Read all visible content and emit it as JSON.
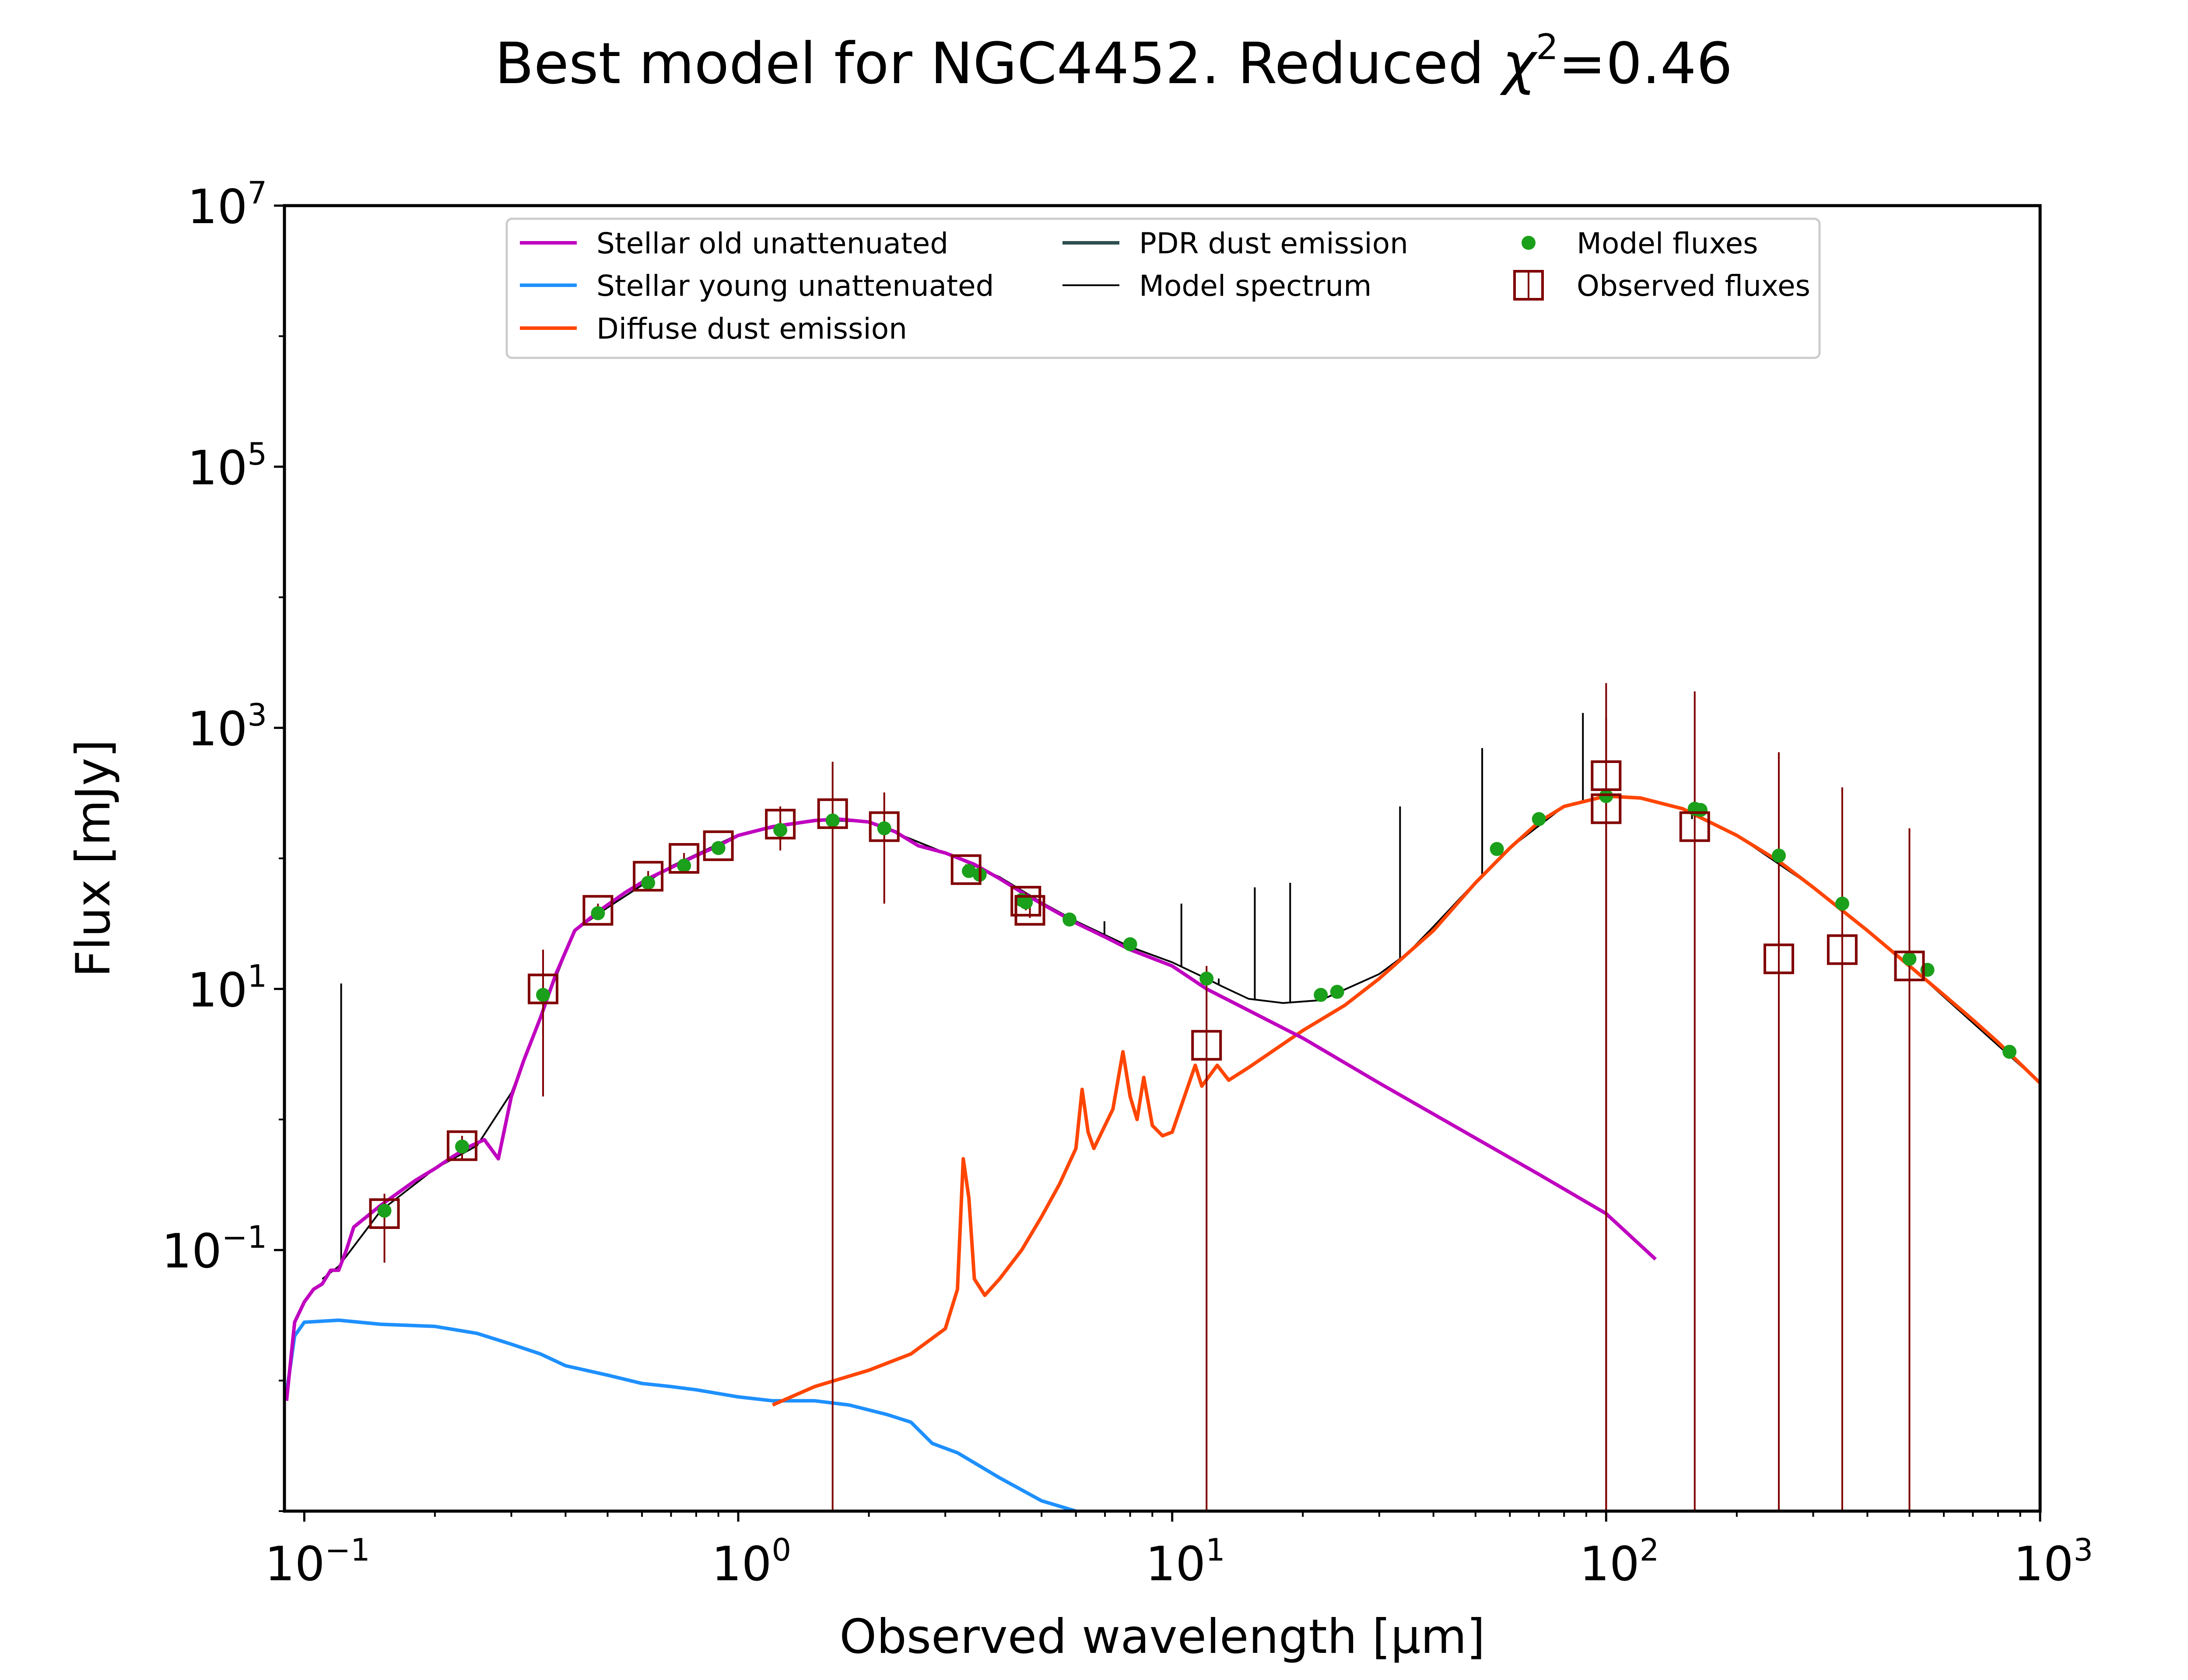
{
  "title": "Best model for NGC4452. Reduced χ²=0.46",
  "title_parts": {
    "main": "Best model for NGC4452. Reduced ",
    "chi": "χ",
    "sup": "2",
    "tail": "=0.46"
  },
  "xlabel": "Observed wavelength [μm]",
  "ylabel": "Flux [mJy]",
  "colors": {
    "stellar_old": "#bf00bf",
    "stellar_young": "#1e90ff",
    "diffuse_dust": "#ff4500",
    "pdr_dust": "#2f4f4f",
    "model_spectrum": "#000000",
    "model_fluxes": "#1aa01a",
    "observed_fluxes": "#800000"
  },
  "chart_data": {
    "type": "line",
    "xscale": "log",
    "yscale": "log",
    "xlim": [
      0.09,
      1000
    ],
    "ylim": [
      0.001,
      10000000
    ],
    "x_ticks": [
      {
        "base": "10",
        "exp": "−1",
        "value": 0.1
      },
      {
        "base": "10",
        "exp": "0",
        "value": 1
      },
      {
        "base": "10",
        "exp": "1",
        "value": 10
      },
      {
        "base": "10",
        "exp": "2",
        "value": 100
      },
      {
        "base": "10",
        "exp": "3",
        "value": 1000
      }
    ],
    "y_ticks": [
      {
        "base": "10",
        "exp": "−1",
        "value": 0.1
      },
      {
        "base": "10",
        "exp": "1",
        "value": 10
      },
      {
        "base": "10",
        "exp": "3",
        "value": 1000
      },
      {
        "base": "10",
        "exp": "5",
        "value": 100000
      },
      {
        "base": "10",
        "exp": "7",
        "value": 10000000
      }
    ],
    "legend": {
      "placement": "top-center",
      "entries": [
        {
          "label": "Stellar old unattenuated",
          "series": "stellar_old",
          "kind": "line"
        },
        {
          "label": "Stellar young unattenuated",
          "series": "stellar_young",
          "kind": "line"
        },
        {
          "label": "Diffuse dust emission",
          "series": "diffuse_dust",
          "kind": "line"
        },
        {
          "label": "PDR dust emission",
          "series": "pdr_dust",
          "kind": "line"
        },
        {
          "label": "Model spectrum",
          "series": "model_spectrum",
          "kind": "thinline"
        },
        {
          "label": "Model fluxes",
          "series": "model_fluxes",
          "kind": "dot"
        },
        {
          "label": "Observed fluxes",
          "series": "observed_fluxes",
          "kind": "square"
        }
      ]
    },
    "series": {
      "stellar_old": [
        [
          0.091,
          0.007
        ],
        [
          0.095,
          0.028
        ],
        [
          0.1,
          0.04
        ],
        [
          0.105,
          0.05
        ],
        [
          0.11,
          0.055
        ],
        [
          0.115,
          0.07
        ],
        [
          0.12,
          0.07
        ],
        [
          0.125,
          0.1
        ],
        [
          0.13,
          0.15
        ],
        [
          0.15,
          0.22
        ],
        [
          0.18,
          0.34
        ],
        [
          0.2,
          0.42
        ],
        [
          0.22,
          0.52
        ],
        [
          0.24,
          0.62
        ],
        [
          0.26,
          0.7
        ],
        [
          0.28,
          0.5
        ],
        [
          0.3,
          1.5
        ],
        [
          0.32,
          2.8
        ],
        [
          0.35,
          6
        ],
        [
          0.38,
          13
        ],
        [
          0.42,
          28
        ],
        [
          0.48,
          40
        ],
        [
          0.55,
          55
        ],
        [
          0.62,
          70
        ],
        [
          0.7,
          85
        ],
        [
          0.8,
          105
        ],
        [
          0.9,
          125
        ],
        [
          1.0,
          150
        ],
        [
          1.2,
          175
        ],
        [
          1.5,
          195
        ],
        [
          1.7,
          200
        ],
        [
          2.0,
          190
        ],
        [
          2.3,
          160
        ],
        [
          2.6,
          125
        ],
        [
          3.0,
          110
        ],
        [
          3.5,
          90
        ],
        [
          4.0,
          70
        ],
        [
          4.5,
          55
        ],
        [
          5.0,
          45
        ],
        [
          6.0,
          32
        ],
        [
          7.0,
          25
        ],
        [
          8.0,
          20
        ],
        [
          10.0,
          15
        ],
        [
          12.0,
          10
        ],
        [
          20.0,
          4.2
        ],
        [
          30.0,
          1.9
        ],
        [
          50.0,
          0.72
        ],
        [
          70.0,
          0.38
        ],
        [
          100.0,
          0.19
        ],
        [
          130.0,
          0.085
        ]
      ],
      "stellar_young": [
        [
          0.091,
          0.008
        ],
        [
          0.095,
          0.022
        ],
        [
          0.1,
          0.028
        ],
        [
          0.12,
          0.029
        ],
        [
          0.15,
          0.027
        ],
        [
          0.2,
          0.026
        ],
        [
          0.25,
          0.023
        ],
        [
          0.3,
          0.019
        ],
        [
          0.35,
          0.016
        ],
        [
          0.4,
          0.013
        ],
        [
          0.5,
          0.011
        ],
        [
          0.6,
          0.0095
        ],
        [
          0.7,
          0.009
        ],
        [
          0.8,
          0.0085
        ],
        [
          1.0,
          0.0075
        ],
        [
          1.2,
          0.007
        ],
        [
          1.5,
          0.007
        ],
        [
          1.8,
          0.0065
        ],
        [
          2.2,
          0.0055
        ],
        [
          2.5,
          0.0048
        ],
        [
          2.8,
          0.0033
        ],
        [
          3.2,
          0.0028
        ],
        [
          4.0,
          0.0018
        ],
        [
          5.0,
          0.0012
        ],
        [
          6.0,
          0.001
        ]
      ],
      "diffuse_dust": [
        [
          1.2,
          0.0065
        ],
        [
          1.5,
          0.009
        ],
        [
          2.0,
          0.012
        ],
        [
          2.5,
          0.016
        ],
        [
          3.0,
          0.025
        ],
        [
          3.2,
          0.05
        ],
        [
          3.3,
          0.5
        ],
        [
          3.4,
          0.25
        ],
        [
          3.5,
          0.06
        ],
        [
          3.7,
          0.045
        ],
        [
          4.0,
          0.06
        ],
        [
          4.5,
          0.1
        ],
        [
          5.0,
          0.18
        ],
        [
          5.5,
          0.32
        ],
        [
          6.0,
          0.6
        ],
        [
          6.2,
          1.7
        ],
        [
          6.4,
          0.8
        ],
        [
          6.6,
          0.6
        ],
        [
          7.0,
          0.9
        ],
        [
          7.3,
          1.2
        ],
        [
          7.7,
          3.3
        ],
        [
          8.0,
          1.5
        ],
        [
          8.3,
          1.0
        ],
        [
          8.6,
          2.1
        ],
        [
          9.0,
          0.9
        ],
        [
          9.5,
          0.75
        ],
        [
          10.0,
          0.8
        ],
        [
          11.3,
          2.6
        ],
        [
          11.7,
          1.8
        ],
        [
          12.7,
          2.6
        ],
        [
          13.5,
          2.0
        ],
        [
          15.0,
          2.5
        ],
        [
          20.0,
          4.8
        ],
        [
          25.0,
          7.5
        ],
        [
          30.0,
          12
        ],
        [
          40.0,
          28
        ],
        [
          50.0,
          65
        ],
        [
          60.0,
          120
        ],
        [
          70.0,
          190
        ],
        [
          80.0,
          250
        ],
        [
          100.0,
          300
        ],
        [
          120.0,
          290
        ],
        [
          150.0,
          240
        ],
        [
          200.0,
          150
        ],
        [
          250.0,
          95
        ],
        [
          300.0,
          60
        ],
        [
          400.0,
          28
        ],
        [
          500.0,
          15
        ],
        [
          600.0,
          9
        ],
        [
          700.0,
          5.8
        ],
        [
          800.0,
          3.9
        ],
        [
          1000.0,
          1.9
        ]
      ],
      "model_spectrum": [
        [
          0.11,
          0.06
        ],
        [
          0.12,
          0.075
        ],
        [
          0.15,
          0.2
        ],
        [
          0.2,
          0.42
        ],
        [
          0.25,
          0.63
        ],
        [
          0.3,
          1.6
        ],
        [
          0.35,
          6.2
        ],
        [
          0.42,
          28
        ],
        [
          0.5,
          42
        ],
        [
          0.7,
          87
        ],
        [
          1.0,
          152
        ],
        [
          1.5,
          198
        ],
        [
          2.0,
          190
        ],
        [
          3.0,
          110
        ],
        [
          4.0,
          72
        ],
        [
          5.0,
          46
        ],
        [
          6.0,
          33
        ],
        [
          8.0,
          21
        ],
        [
          10.0,
          16
        ],
        [
          12.0,
          12
        ],
        [
          13.0,
          10.5
        ],
        [
          15.0,
          8.4
        ],
        [
          18.0,
          7.8
        ],
        [
          22.0,
          8.2
        ],
        [
          26.0,
          10.5
        ],
        [
          30.0,
          13
        ],
        [
          35.0,
          19
        ],
        [
          40.0,
          30
        ],
        [
          50.0,
          66
        ],
        [
          60.0,
          120
        ],
        [
          80.0,
          250
        ],
        [
          100.0,
          300
        ],
        [
          120.0,
          290
        ],
        [
          150.0,
          240
        ],
        [
          200.0,
          150
        ],
        [
          300.0,
          60
        ],
        [
          500.0,
          15
        ],
        [
          1000.0,
          1.9
        ]
      ],
      "emission_lines": [
        [
          0.1216,
          11
        ],
        [
          6.98,
          33
        ],
        [
          10.5,
          45
        ],
        [
          12.8,
          12
        ],
        [
          15.5,
          60
        ],
        [
          18.7,
          65
        ],
        [
          33.5,
          250
        ],
        [
          51.8,
          700
        ],
        [
          57.3,
          120
        ],
        [
          88.4,
          1300
        ],
        [
          157.7,
          200
        ]
      ]
    },
    "model_fluxes": [
      [
        0.153,
        0.2
      ],
      [
        0.231,
        0.62
      ],
      [
        0.355,
        9
      ],
      [
        0.475,
        38
      ],
      [
        0.62,
        65
      ],
      [
        0.75,
        88
      ],
      [
        0.9,
        120
      ],
      [
        1.25,
        165
      ],
      [
        1.65,
        195
      ],
      [
        2.17,
        170
      ],
      [
        3.4,
        80
      ],
      [
        3.6,
        75
      ],
      [
        4.5,
        48
      ],
      [
        4.6,
        46
      ],
      [
        5.8,
        34
      ],
      [
        8.0,
        22
      ],
      [
        12.0,
        12
      ],
      [
        22.0,
        9
      ],
      [
        24.0,
        9.5
      ],
      [
        56.0,
        118
      ],
      [
        70.0,
        200
      ],
      [
        100.0,
        300
      ],
      [
        160.0,
        240
      ],
      [
        165.0,
        235
      ],
      [
        250.0,
        105
      ],
      [
        350.0,
        45
      ],
      [
        500.0,
        17
      ],
      [
        550.0,
        14
      ],
      [
        850.0,
        3.3
      ]
    ],
    "observed_fluxes": [
      {
        "x": 0.153,
        "y": 0.19,
        "ylow": 0.08,
        "yhigh": 0.27
      },
      {
        "x": 0.231,
        "y": 0.63,
        "ylow": 0.5,
        "yhigh": 0.75
      },
      {
        "x": 0.355,
        "y": 10,
        "ylow": 1.5,
        "yhigh": 20
      },
      {
        "x": 0.475,
        "y": 40,
        "ylow": 35,
        "yhigh": 45
      },
      {
        "x": 0.62,
        "y": 73,
        "ylow": 65,
        "yhigh": 80
      },
      {
        "x": 0.75,
        "y": 100,
        "ylow": 90,
        "yhigh": 110
      },
      {
        "x": 0.9,
        "y": 125,
        "ylow": 115,
        "yhigh": 135
      },
      {
        "x": 1.25,
        "y": 183,
        "ylow": 115,
        "yhigh": 250
      },
      {
        "x": 1.65,
        "y": 220,
        "ylow": 0.001,
        "yhigh": 550
      },
      {
        "x": 2.17,
        "y": 175,
        "ylow": 45,
        "yhigh": 320
      },
      {
        "x": 3.35,
        "y": 82,
        "ylow": 75,
        "yhigh": 90
      },
      {
        "x": 4.6,
        "y": 47,
        "ylow": 40,
        "yhigh": 55
      },
      {
        "x": 4.7,
        "y": 40,
        "ylow": 35,
        "yhigh": 45
      },
      {
        "x": 12.0,
        "y": 3.7,
        "ylow": 0.001,
        "yhigh": 15
      },
      {
        "x": 100.0,
        "y": 430,
        "ylow": 0.001,
        "yhigh": 2200
      },
      {
        "x": 100.0,
        "y": 240,
        "ylow": 0.001,
        "yhigh": 1200
      },
      {
        "x": 160.0,
        "y": 175,
        "ylow": 0.001,
        "yhigh": 1900
      },
      {
        "x": 250.0,
        "y": 17,
        "ylow": 0.001,
        "yhigh": 650
      },
      {
        "x": 350.0,
        "y": 20,
        "ylow": 0.001,
        "yhigh": 350
      },
      {
        "x": 500.0,
        "y": 15,
        "ylow": 0.001,
        "yhigh": 170
      }
    ]
  }
}
